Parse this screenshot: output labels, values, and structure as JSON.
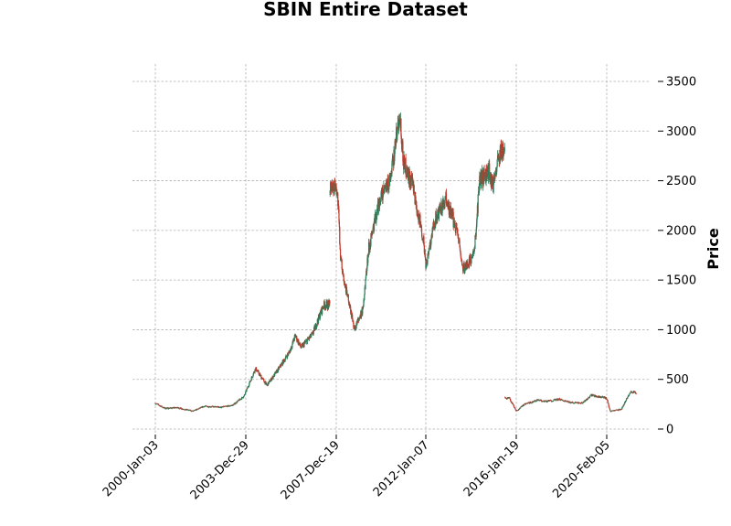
{
  "chart_data": {
    "type": "candlestick",
    "title": "SBIN Entire Dataset",
    "ylabel": "Price",
    "xlabel": "",
    "ylim": [
      0,
      3500
    ],
    "yticks": [
      0,
      500,
      1000,
      1500,
      2000,
      2500,
      3000,
      3500
    ],
    "xticks": [
      "2000-Jan-03",
      "2003-Dec-29",
      "2007-Dec-19",
      "2012-Jan-07",
      "2016-Jan-19",
      "2020-Feb-05"
    ],
    "grid": true,
    "colors": {
      "up": "#2e7d5b",
      "down": "#c0392b"
    },
    "price_trend": {
      "x": [
        "2000-Jan-03",
        "2000-Jun-01",
        "2001-Jan-01",
        "2001-Sep-01",
        "2002-Mar-01",
        "2002-Dec-01",
        "2003-Jun-01",
        "2003-Dec-01",
        "2004-Mar-01",
        "2004-Jun-01",
        "2004-Dec-01",
        "2005-Jun-01",
        "2005-Dec-01",
        "2006-Mar-01",
        "2006-Jun-01",
        "2006-Dec-01",
        "2007-Jun-01",
        "2007-Dec-19",
        "2008-Jan-15",
        "2008-Mar-01",
        "2008-Jun-01",
        "2008-Oct-15",
        "2009-Mar-01",
        "2009-Jun-01",
        "2009-Dec-01",
        "2010-Jun-01",
        "2010-Nov-01",
        "2011-Jan-01",
        "2011-Jun-01",
        "2011-Dec-01",
        "2012-Jan-07",
        "2012-Jun-01",
        "2012-Dec-01",
        "2013-Jun-01",
        "2013-Sep-01",
        "2014-Mar-01",
        "2014-Jun-01",
        "2014-Nov-01",
        "2015-Jan-01",
        "2015-May-01",
        "2015-Oct-01",
        "2016-Jan-19",
        "2016-Jun-01",
        "2017-Jan-01",
        "2017-Jun-01",
        "2018-Jan-01",
        "2018-Jun-01",
        "2019-Jan-01",
        "2019-Jun-01",
        "2020-Feb-05",
        "2020-Apr-01",
        "2020-Oct-01",
        "2021-Mar-01",
        "2021-Jun-01"
      ],
      "close": [
        260,
        210,
        215,
        180,
        230,
        220,
        240,
        330,
        470,
        610,
        440,
        600,
        780,
        940,
        820,
        950,
        1250,
        2450,
        2300,
        1700,
        1400,
        1000,
        1200,
        1800,
        2300,
        2500,
        3200,
        2700,
        2450,
        1900,
        1650,
        2100,
        2300,
        2000,
        1600,
        1750,
        2500,
        2600,
        2450,
        2800,
        310,
        180,
        250,
        290,
        280,
        300,
        270,
        260,
        340,
        310,
        180,
        200,
        380,
        360
      ]
    }
  }
}
